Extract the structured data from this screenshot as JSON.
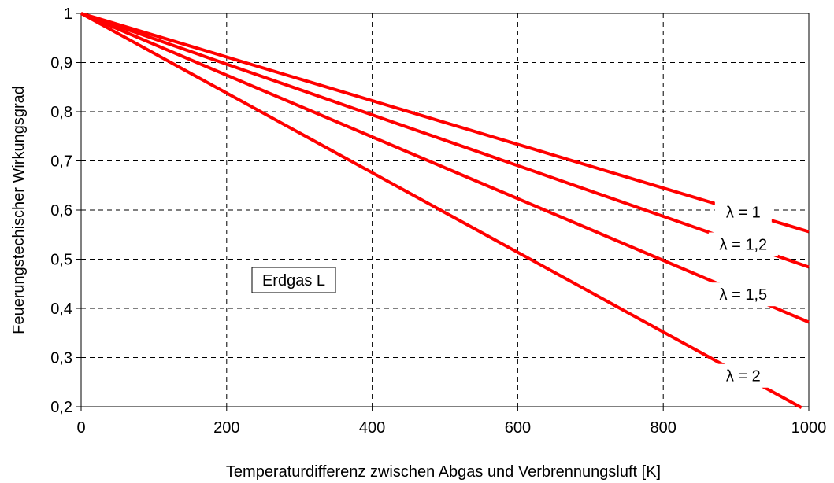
{
  "colors": {
    "series": "#ff0000",
    "grid": "#000000",
    "axis": "#000000",
    "background": "#ffffff"
  },
  "chart_data": {
    "type": "line",
    "title": "",
    "xlabel": "Temperaturdifferenz zwischen Abgas und Verbrennungsluft [K]",
    "ylabel": "Feuerungstechischer Wirkungsgrad",
    "xlim": [
      0,
      1000
    ],
    "ylim": [
      0.2,
      1
    ],
    "xticks": [
      0,
      200,
      400,
      600,
      800,
      1000
    ],
    "xtick_labels": [
      "0",
      "200",
      "400",
      "600",
      "800",
      "1000"
    ],
    "yticks": [
      0.2,
      0.3,
      0.4,
      0.5,
      0.6,
      0.7,
      0.8,
      0.9,
      1
    ],
    "ytick_labels": [
      "0,2",
      "0,3",
      "0,4",
      "0,5",
      "0,6",
      "0,7",
      "0,8",
      "0,9",
      "1"
    ],
    "grid": true,
    "grid_style": "dashed",
    "series": [
      {
        "name": "λ = 1",
        "x": [
          0,
          1000
        ],
        "y": [
          1,
          0.556
        ]
      },
      {
        "name": "λ = 1,2",
        "x": [
          0,
          1000
        ],
        "y": [
          1,
          0.484
        ]
      },
      {
        "name": "λ = 1,5",
        "x": [
          0,
          1000
        ],
        "y": [
          1,
          0.372
        ]
      },
      {
        "name": "λ = 2",
        "x": [
          0,
          990
        ],
        "y": [
          1,
          0.198
        ]
      }
    ],
    "annotations": [
      {
        "text": "Erdgas L",
        "style": "boxed"
      }
    ]
  }
}
